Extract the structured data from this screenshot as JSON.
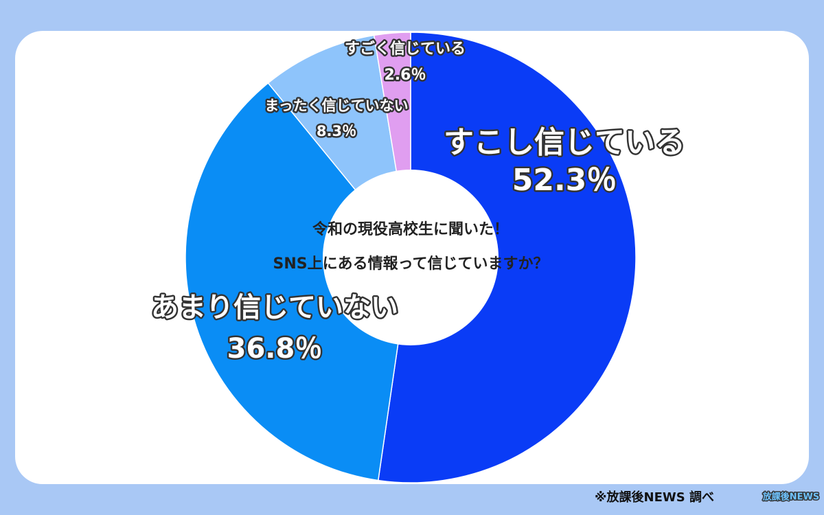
{
  "chart_data": {
    "type": "donut",
    "title": "令和の現役高校生に聞いた！",
    "subtitle": "SNS上にある情報って信じていますか？",
    "categories": [
      "すこし信じている",
      "あまり信じていない",
      "まったく信じていない",
      "すごく信じている"
    ],
    "values": [
      52.3,
      36.8,
      8.3,
      2.6
    ],
    "value_labels": [
      "52.3％",
      "36.8％",
      "8.3％",
      "2.6％"
    ],
    "colors": [
      "#0a3cf6",
      "#0a8df5",
      "#8ec4fb",
      "#e09ef0"
    ],
    "source": "※放課後NEWS 調べ",
    "logo": "放課後NEWS"
  }
}
